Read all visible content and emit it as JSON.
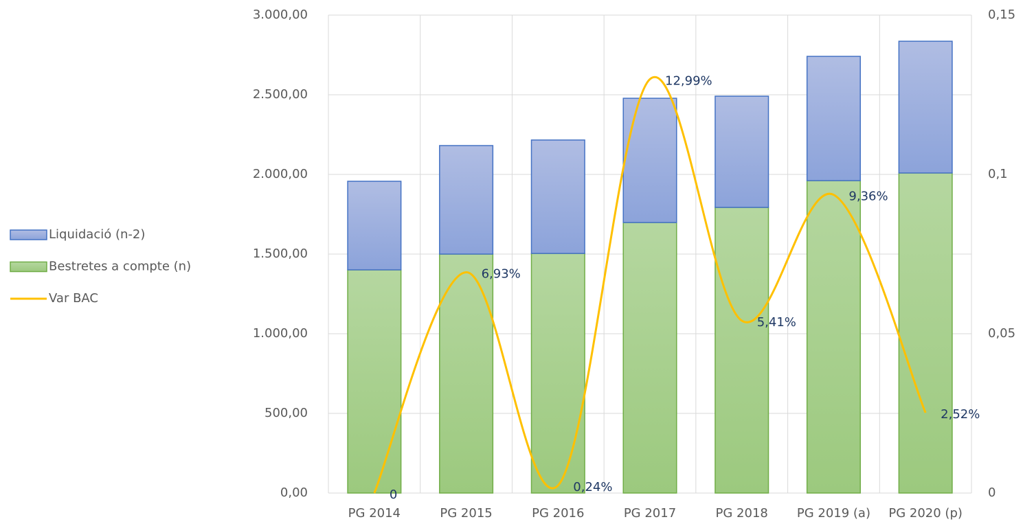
{
  "chart_data": {
    "type": "bar",
    "stacked": true,
    "categories": [
      "PG 2014",
      "PG 2015",
      "PG 2016",
      "PG 2017",
      "PG 2018",
      "PG 2019 (a)",
      "PG 2020 (p)"
    ],
    "series": [
      {
        "name": "Bestretes a compte (n)",
        "color": "#a9d18e",
        "stroke": "#70ad47",
        "values": [
          1401,
          1500,
          1504,
          1698,
          1793,
          1961,
          2009
        ]
      },
      {
        "name": "Liquidació (n-2)",
        "color": "#a4b4e0",
        "stroke": "#4472c4",
        "values": [
          556,
          681,
          712,
          780,
          698,
          780,
          827
        ]
      },
      {
        "name": "Var BAC",
        "type": "line",
        "axis": "y2",
        "color": "#ffc000",
        "values": [
          0,
          0.0693,
          0.0024,
          0.1299,
          0.0541,
          0.0936,
          0.0252
        ],
        "value_labels": [
          "0",
          "6,93%",
          "0,24%",
          "12,99%",
          "5,41%",
          "9,36%",
          "2,52%"
        ]
      }
    ],
    "legend_order": [
      1,
      0,
      2
    ],
    "legend": "left",
    "ylim": [
      0,
      3000
    ],
    "yticks": [
      {
        "value": 0,
        "label": "0,00"
      },
      {
        "value": 500,
        "label": "500,00"
      },
      {
        "value": 1000,
        "label": "1.000,00"
      },
      {
        "value": 1500,
        "label": "1.500,00"
      },
      {
        "value": 2000,
        "label": "2.000,00"
      },
      {
        "value": 2500,
        "label": "2.500,00"
      },
      {
        "value": 3000,
        "label": "3.000,00"
      }
    ],
    "y2lim": [
      0,
      0.15
    ],
    "y2ticks": [
      0,
      {
        "value": 0.05,
        "label": "0,05"
      },
      {
        "value": 0.1,
        "label": "0,1"
      },
      {
        "value": 0.15,
        "label": "0,15"
      }
    ],
    "grid": true
  }
}
